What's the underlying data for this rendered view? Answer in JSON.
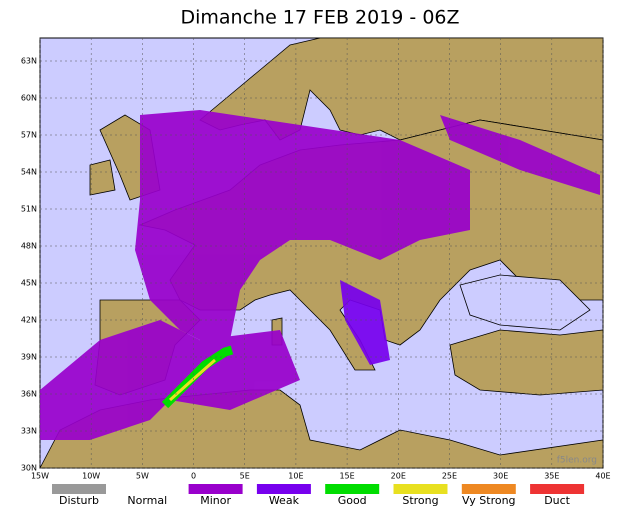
{
  "title": "Dimanche 17 FEB 2019 - 06Z",
  "lat_labels": [
    "63N",
    "60N",
    "57N",
    "54N",
    "51N",
    "48N",
    "45N",
    "42N",
    "39N",
    "36N",
    "33N",
    "30N"
  ],
  "lon_labels": [
    "15W",
    "10W",
    "5W",
    "0",
    "5E",
    "10E",
    "15E",
    "20E",
    "25E",
    "30E",
    "35E",
    "40E"
  ],
  "watermark": "f5len.org",
  "legend": [
    {
      "label": "Disturb",
      "color": "#999999"
    },
    {
      "label": "Normal",
      "color": "#ffffff"
    },
    {
      "label": "Minor",
      "color": "#9900cc"
    },
    {
      "label": "Weak",
      "color": "#7700ee"
    },
    {
      "label": "Good",
      "color": "#00dd00"
    },
    {
      "label": "Strong",
      "color": "#e8e020"
    },
    {
      "label": "Vy Strong",
      "color": "#ee8822"
    },
    {
      "label": "Duct",
      "color": "#ee3333"
    }
  ]
}
